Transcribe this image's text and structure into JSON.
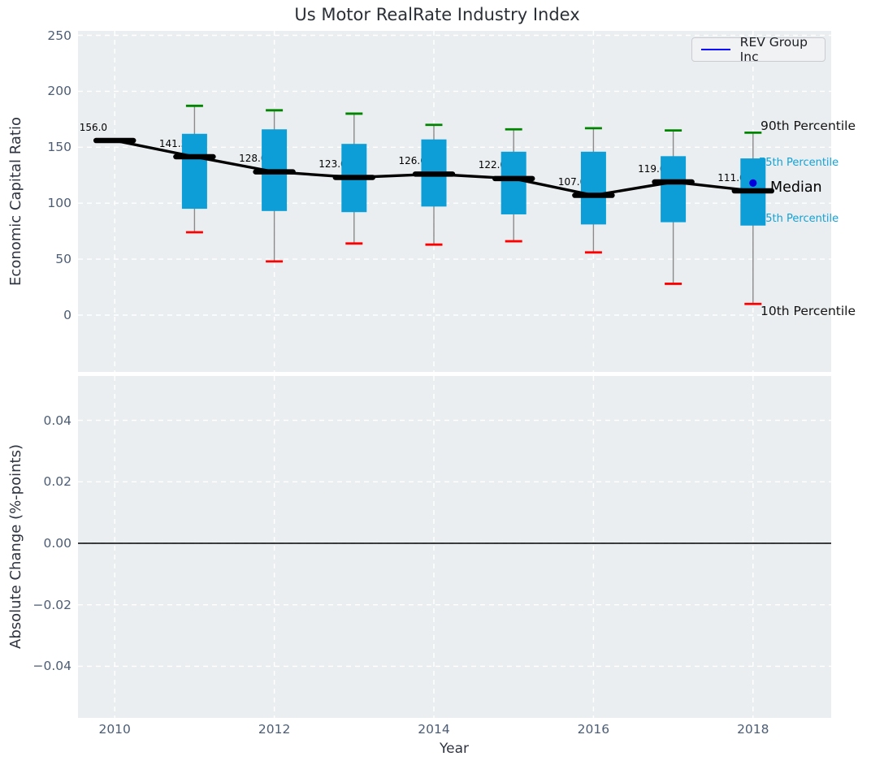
{
  "chart_data": {
    "type": "boxplot-with-median-line",
    "title": "Us Motor RealRate Industry Index",
    "xlabel": "Year",
    "x_tick_years": [
      2010,
      2012,
      2014,
      2016,
      2018
    ],
    "x_tick_labels": [
      "2010",
      "2012",
      "2014",
      "2016",
      "2018"
    ],
    "top": {
      "ylabel": "Economic Capital Ratio",
      "yticks": [
        0,
        50,
        100,
        150,
        200,
        250
      ],
      "ytick_labels": [
        "0",
        "50",
        "100",
        "150",
        "200",
        "250"
      ],
      "ylim": [
        -51,
        253
      ],
      "grid": true,
      "median_series": {
        "years": [
          2010,
          2011,
          2012,
          2013,
          2014,
          2015,
          2016,
          2017,
          2018
        ],
        "values": [
          156,
          141.5,
          128,
          123,
          126,
          122,
          107,
          119,
          111
        ],
        "labels": [
          "156.0",
          "141.5",
          "128.0",
          "123.0",
          "126.0",
          "122.0",
          "107.0",
          "119.0",
          "111.0"
        ]
      },
      "boxes": [
        {
          "year": 2011,
          "p10": 74,
          "q25": 95,
          "median": 141.5,
          "q75": 162,
          "p90": 187
        },
        {
          "year": 2012,
          "p10": 48,
          "q25": 93,
          "median": 128,
          "q75": 166,
          "p90": 183
        },
        {
          "year": 2013,
          "p10": 64,
          "q25": 92,
          "median": 123,
          "q75": 153,
          "p90": 180
        },
        {
          "year": 2014,
          "p10": 63,
          "q25": 97,
          "median": 126,
          "q75": 157,
          "p90": 170
        },
        {
          "year": 2015,
          "p10": 66,
          "q25": 90,
          "median": 122,
          "q75": 146,
          "p90": 166
        },
        {
          "year": 2016,
          "p10": 56,
          "q25": 81,
          "median": 107,
          "q75": 146,
          "p90": 167
        },
        {
          "year": 2017,
          "p10": 28,
          "q25": 83,
          "median": 119,
          "q75": 142,
          "p90": 165
        },
        {
          "year": 2018,
          "p10": 10,
          "q25": 80,
          "median": 111,
          "q75": 140,
          "p90": 163
        }
      ],
      "company_point": {
        "name": "REV Group Inc",
        "year": 2018,
        "value": 118
      },
      "annotations": {
        "p90": "90th Percentile",
        "p75": "75th Percentile",
        "median": "Median",
        "p25": "25th Percentile",
        "p10": "10th Percentile"
      }
    },
    "bottom": {
      "ylabel": "Absolute Change (%-points)",
      "yticks": [
        0.04,
        0.02,
        0,
        -0.02,
        -0.04
      ],
      "ytick_labels": [
        "0.04",
        "0.02",
        "0.00",
        "−0.02",
        "−0.04"
      ],
      "zero_line": 0,
      "series": []
    },
    "legend": {
      "position": "upper right",
      "entries": [
        {
          "label": "REV Group Inc",
          "color": "#0000ff"
        }
      ]
    },
    "colors": {
      "box_fill": "#0d9ed7",
      "percentile_text": "#12a2d7",
      "p90_cap": "#008500",
      "p10_cap": "#ff0000",
      "median_line": "#000000",
      "company_dot": "#0000dd",
      "whisker": "#8a8a8a",
      "plot_bg": "#ebeef0",
      "grid": "#ffffff",
      "tick_text": "#4c5d75",
      "label_text": "#2e3440"
    }
  }
}
